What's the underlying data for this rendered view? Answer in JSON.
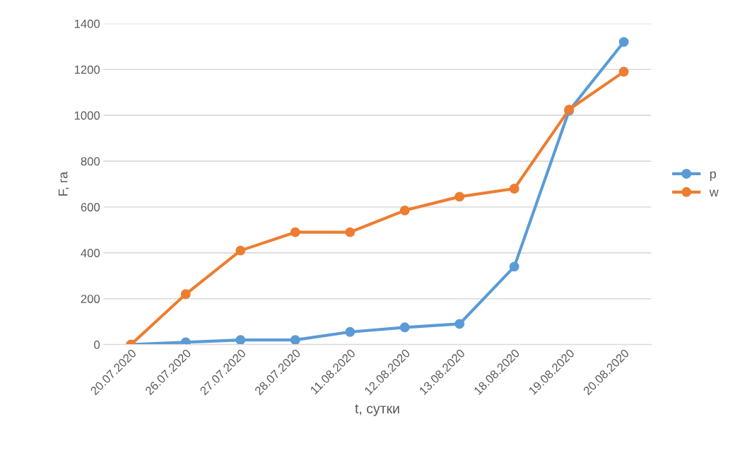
{
  "chart_data": {
    "type": "line",
    "xlabel": "t, сутки",
    "ylabel": "F, га",
    "categories": [
      "20.07.2020",
      "26.07.2020",
      "27.07.2020",
      "28.07.2020",
      "11.08.2020",
      "12.08.2020",
      "13.08.2020",
      "18.08.2020",
      "19.08.2020",
      "20.08.2020"
    ],
    "series": [
      {
        "name": "p",
        "color": "#5b9bd5",
        "values": [
          0,
          10,
          20,
          20,
          55,
          75,
          90,
          340,
          1020,
          1320
        ]
      },
      {
        "name": "w",
        "color": "#ed7d31",
        "values": [
          0,
          220,
          410,
          490,
          490,
          585,
          645,
          680,
          1025,
          1190
        ]
      }
    ],
    "ylim": [
      0,
      1400
    ],
    "yticks": [
      0,
      200,
      400,
      600,
      800,
      1000,
      1200,
      1400
    ],
    "grid": "y",
    "legend": "right",
    "marker": "circle",
    "line_style": "solid"
  }
}
